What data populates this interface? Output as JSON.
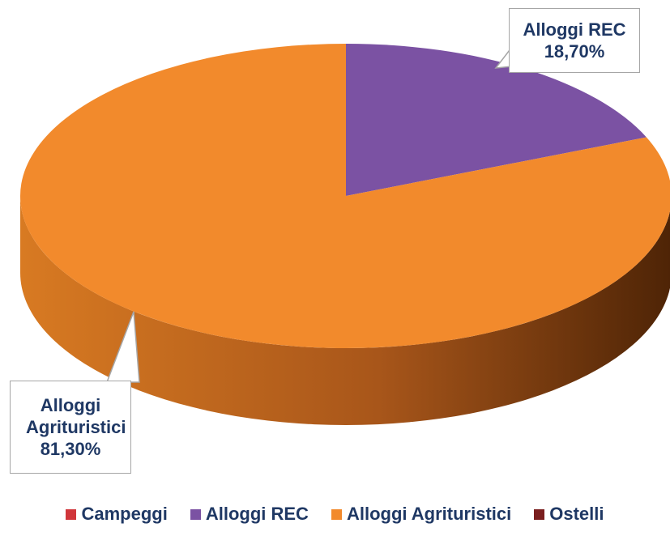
{
  "chart_data": {
    "type": "pie",
    "categories": [
      "Campeggi",
      "Alloggi REC",
      "Alloggi Agrituristici",
      "Ostelli"
    ],
    "values": [
      0,
      18.7,
      81.3,
      0
    ],
    "value_labels": [
      null,
      "18,70%",
      "81,30%",
      null
    ],
    "colors": [
      "#d0363b",
      "#7b52a3",
      "#f28a2c",
      "#7a1e1e"
    ]
  }
}
